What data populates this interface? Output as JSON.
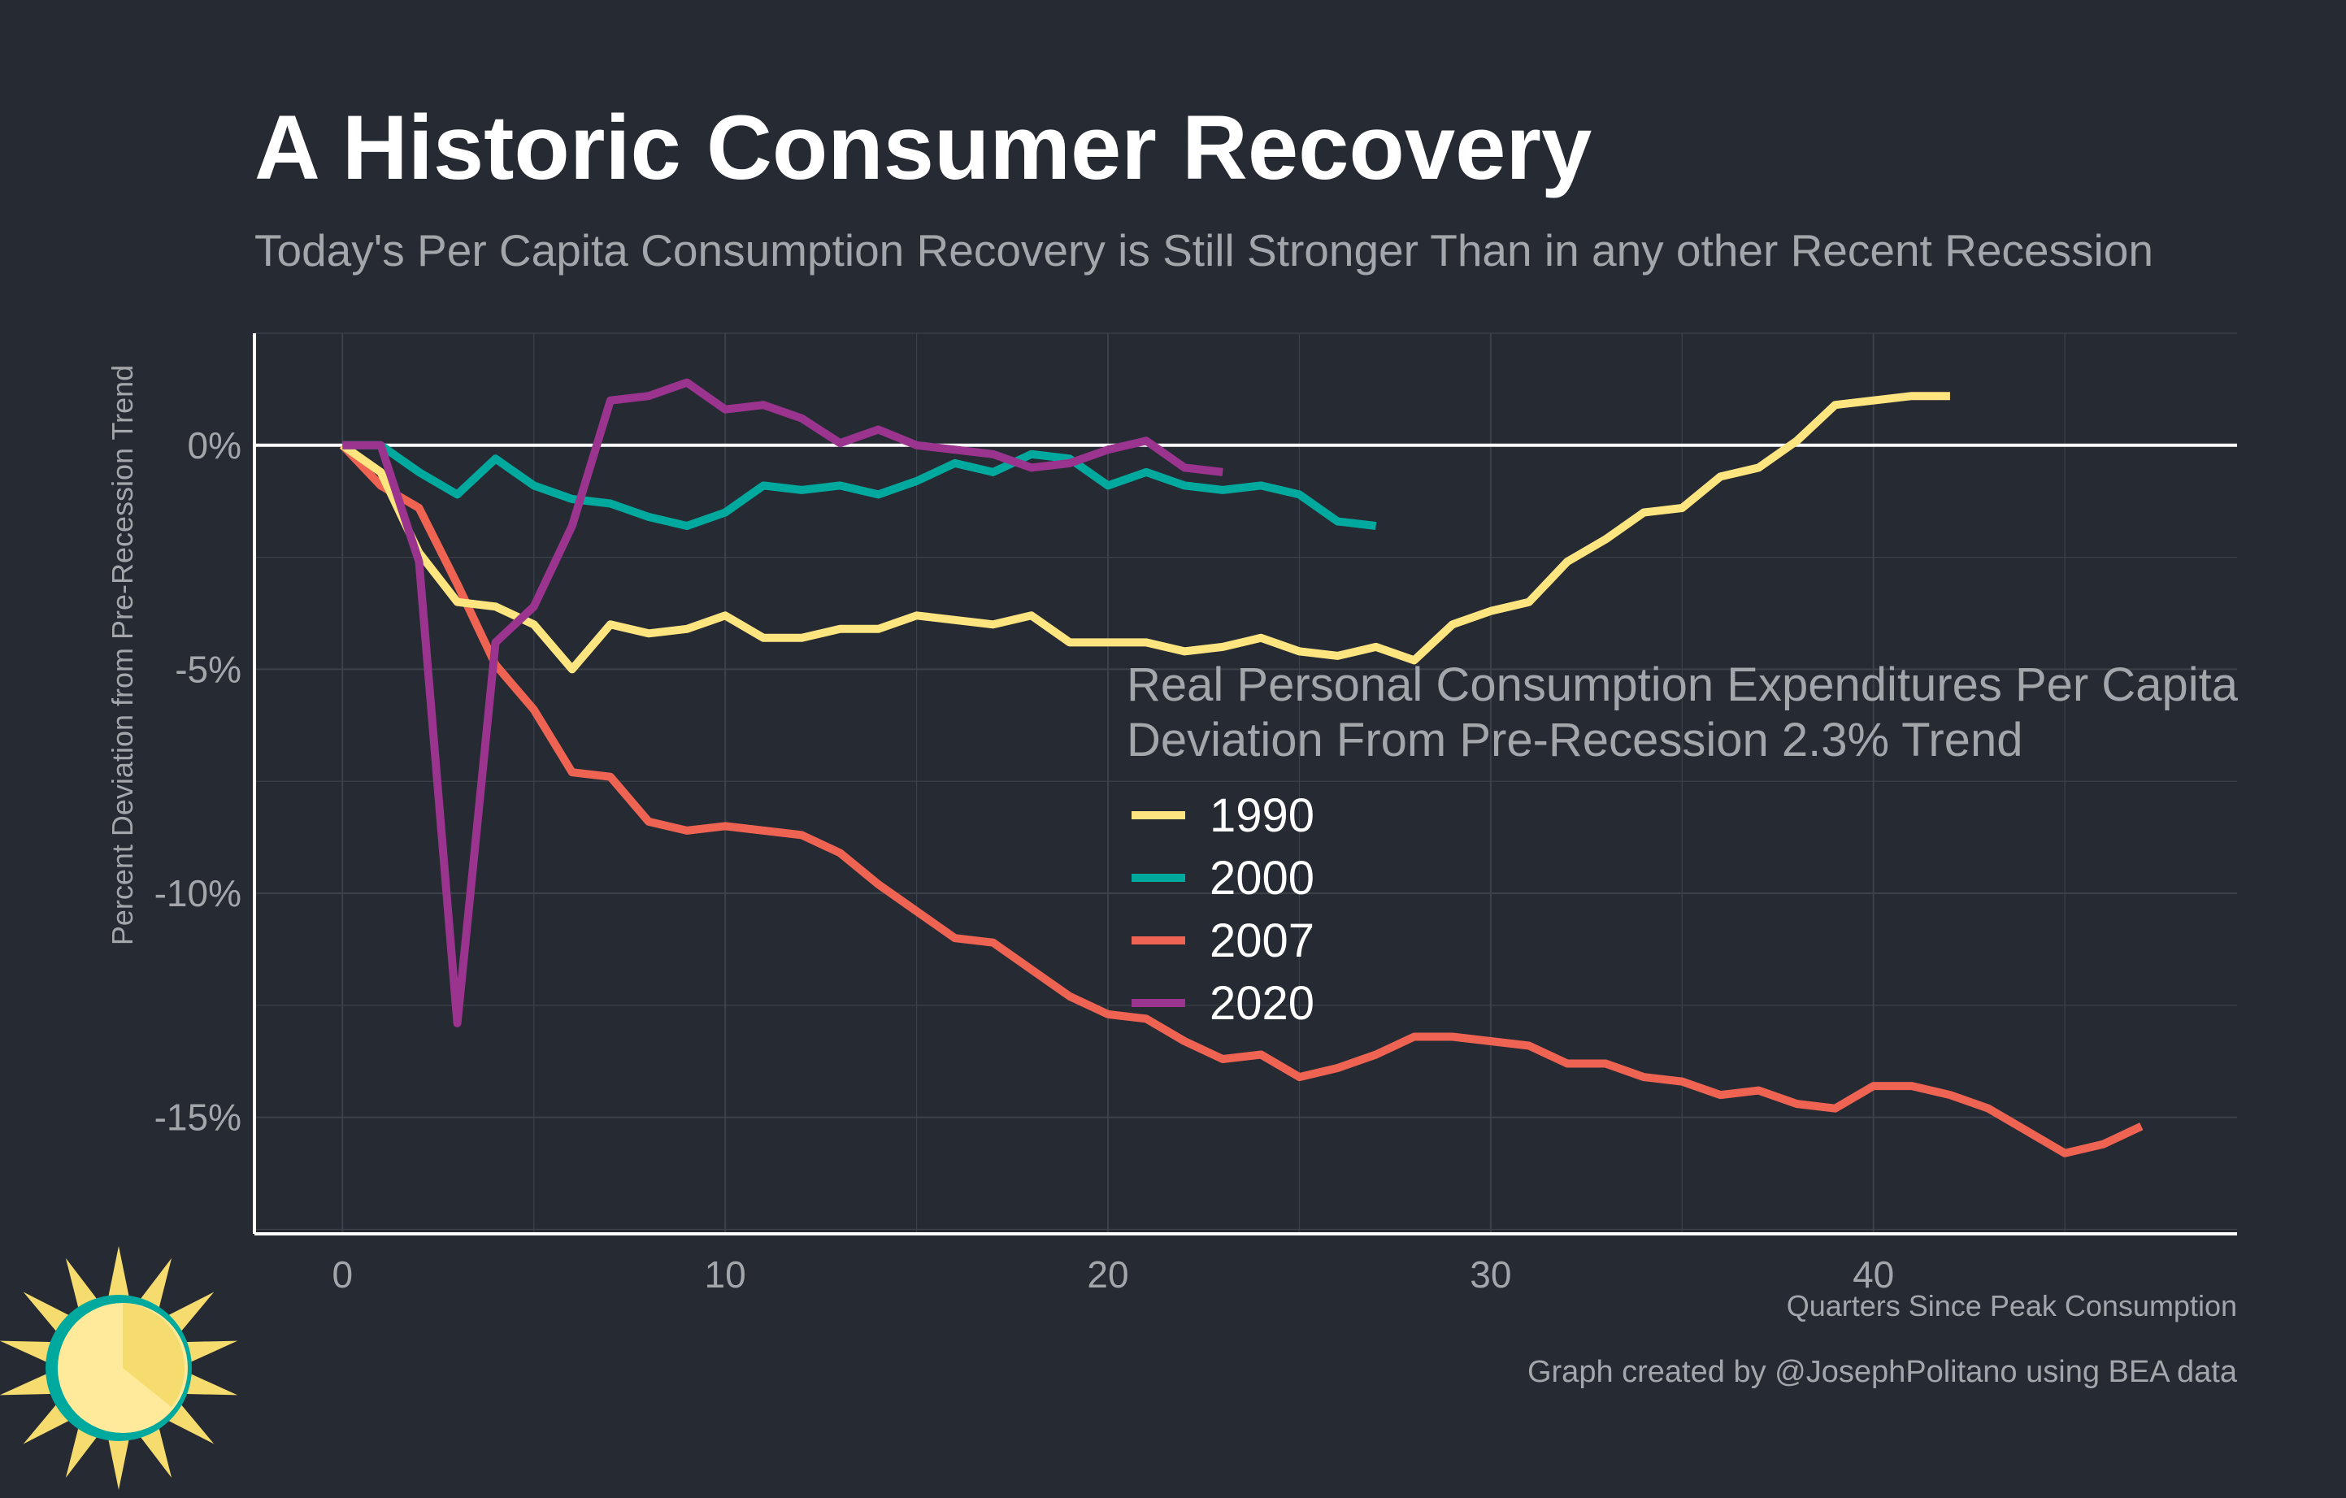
{
  "title": "A Historic Consumer Recovery",
  "subtitle": "Today's Per Capita Consumption Recovery is Still Stronger Than in any other Recent Recession",
  "caption": "Graph created by @JosephPolitano using BEA data",
  "colors": {
    "background": "#252a33",
    "title": "#ffffff",
    "subtitle": "#a3a6ab",
    "grid": "#3c414a",
    "axis": "#ffffff",
    "zero_line": "#ffffff"
  },
  "logo_icon": "sun-logo-icon",
  "chart_data": {
    "type": "line",
    "xlabel": "Quarters Since Peak Consumption",
    "ylabel": "Percent Deviation from Pre-Recession Trend",
    "xlim": [
      -2.3,
      49.5
    ],
    "ylim": [
      -17.6,
      2.5
    ],
    "x_ticks": [
      0,
      10,
      20,
      30,
      40
    ],
    "x_tick_labels": [
      "0",
      "10",
      "20",
      "30",
      "40"
    ],
    "y_ticks": [
      0,
      -5,
      -10,
      -15
    ],
    "y_tick_labels": [
      "0%",
      "-5%",
      "-10%",
      "-15%"
    ],
    "grid": true,
    "legend_position": "center-right",
    "legend_title": "Real Personal Consumption Expenditures Per Capita\nDeviation From Pre-Recession 2.3% Trend",
    "series": [
      {
        "name": "1990",
        "color": "#ffe580",
        "x": [
          0,
          1,
          2,
          3,
          4,
          5,
          6,
          7,
          8,
          9,
          10,
          11,
          12,
          13,
          14,
          15,
          16,
          17,
          18,
          19,
          20,
          21,
          22,
          23,
          24,
          25,
          26,
          27,
          28,
          29,
          30,
          31,
          32,
          33,
          34,
          35,
          36,
          37,
          38,
          39,
          40,
          41,
          42
        ],
        "y": [
          0,
          -0.6,
          -2.4,
          -3.5,
          -3.6,
          -4.0,
          -5.0,
          -4.0,
          -4.2,
          -4.1,
          -3.8,
          -4.3,
          -4.3,
          -4.1,
          -4.1,
          -3.8,
          -3.9,
          -4.0,
          -3.8,
          -4.4,
          -4.4,
          -4.4,
          -4.6,
          -4.5,
          -4.3,
          -4.6,
          -4.7,
          -4.5,
          -4.8,
          -4.0,
          -3.7,
          -3.5,
          -2.6,
          -2.1,
          -1.5,
          -1.4,
          -0.7,
          -0.5,
          0.1,
          0.9,
          1.0,
          1.1,
          1.1
        ]
      },
      {
        "name": "2000",
        "color": "#00a99d",
        "x": [
          0,
          1,
          2,
          3,
          4,
          5,
          6,
          7,
          8,
          9,
          10,
          11,
          12,
          13,
          14,
          15,
          16,
          17,
          18,
          19,
          20,
          21,
          22,
          23,
          24,
          25,
          26,
          27
        ],
        "y": [
          0,
          0,
          -0.6,
          -1.1,
          -0.3,
          -0.9,
          -1.2,
          -1.3,
          -1.6,
          -1.8,
          -1.5,
          -0.9,
          -1.0,
          -0.9,
          -1.1,
          -0.8,
          -0.4,
          -0.6,
          -0.2,
          -0.3,
          -0.9,
          -0.6,
          -0.9,
          -1.0,
          -0.9,
          -1.1,
          -1.7,
          -1.8
        ]
      },
      {
        "name": "2007",
        "color": "#ee6352",
        "x": [
          0,
          1,
          2,
          3,
          4,
          5,
          6,
          7,
          8,
          9,
          10,
          11,
          12,
          13,
          14,
          15,
          16,
          17,
          18,
          19,
          20,
          21,
          22,
          23,
          24,
          25,
          26,
          27,
          28,
          29,
          30,
          31,
          32,
          33,
          34,
          35,
          36,
          37,
          38,
          39,
          40,
          41,
          42,
          43,
          44,
          45,
          46,
          47
        ],
        "y": [
          0,
          -0.9,
          -1.4,
          -3.1,
          -4.9,
          -5.9,
          -7.3,
          -7.4,
          -8.4,
          -8.6,
          -8.5,
          -8.6,
          -8.7,
          -9.1,
          -9.8,
          -10.4,
          -11.0,
          -11.1,
          -11.7,
          -12.3,
          -12.7,
          -12.8,
          -13.3,
          -13.7,
          -13.6,
          -14.1,
          -13.9,
          -13.6,
          -13.2,
          -13.2,
          -13.3,
          -13.4,
          -13.8,
          -13.8,
          -14.1,
          -14.2,
          -14.5,
          -14.4,
          -14.7,
          -14.8,
          -14.3,
          -14.3,
          -14.5,
          -14.8,
          -15.3,
          -15.8,
          -15.6,
          -15.2
        ]
      },
      {
        "name": "2020",
        "color": "#9a348e",
        "x": [
          0,
          1,
          2,
          3,
          4,
          5,
          6,
          7,
          8,
          9,
          10,
          11,
          12,
          13,
          14,
          15,
          16,
          17,
          18,
          19,
          20,
          21,
          22,
          23
        ],
        "y": [
          0,
          0,
          -2.6,
          -12.9,
          -4.4,
          -3.6,
          -1.8,
          1.0,
          1.1,
          1.4,
          0.8,
          0.9,
          0.6,
          0.05,
          0.35,
          0,
          -0.1,
          -0.2,
          -0.5,
          -0.4,
          -0.1,
          0.1,
          -0.5,
          -0.6
        ]
      }
    ]
  }
}
